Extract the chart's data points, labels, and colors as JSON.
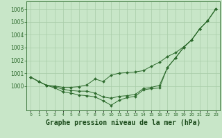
{
  "x": [
    0,
    1,
    2,
    3,
    4,
    5,
    6,
    7,
    8,
    9,
    10,
    11,
    12,
    13,
    14,
    15,
    16,
    17,
    18,
    19,
    20,
    21,
    22,
    23
  ],
  "line_top": [
    1000.7,
    1000.35,
    1000.05,
    1000.0,
    999.9,
    999.9,
    999.95,
    1000.1,
    1000.55,
    1000.35,
    1000.85,
    1001.0,
    1001.05,
    1001.1,
    1001.2,
    1001.55,
    1001.85,
    1002.3,
    1002.6,
    1003.05,
    1003.6,
    1004.45,
    1005.1,
    1006.0
  ],
  "line_mid": [
    1000.7,
    1000.35,
    1000.05,
    999.95,
    999.75,
    999.65,
    999.6,
    999.6,
    999.45,
    999.15,
    999.05,
    999.2,
    999.25,
    999.35,
    999.8,
    999.9,
    1000.05,
    1001.45,
    1002.2,
    1003.0,
    1003.6,
    1004.45,
    1005.1,
    1006.0
  ],
  "line_bot": [
    1000.7,
    1000.35,
    1000.05,
    999.85,
    999.55,
    999.45,
    999.3,
    999.25,
    999.15,
    998.85,
    998.5,
    998.9,
    999.1,
    999.2,
    999.7,
    999.8,
    999.85,
    1001.45,
    1002.2,
    1003.0,
    1003.6,
    1004.45,
    1005.1,
    1006.0
  ],
  "bg_color": "#c8e6c8",
  "line_color": "#2d6a2d",
  "grid_color": "#a8cca8",
  "title": "Graphe pression niveau de la mer (hPa)",
  "ylim_min": 998.1,
  "ylim_max": 1006.6,
  "yticks": [
    1000,
    1001,
    1002,
    1003,
    1004,
    1005,
    1006
  ],
  "xlabel_color": "#1a4a1a",
  "label_fontsize": 7.0,
  "ytick_fontsize": 5.5,
  "xtick_fontsize": 4.5
}
